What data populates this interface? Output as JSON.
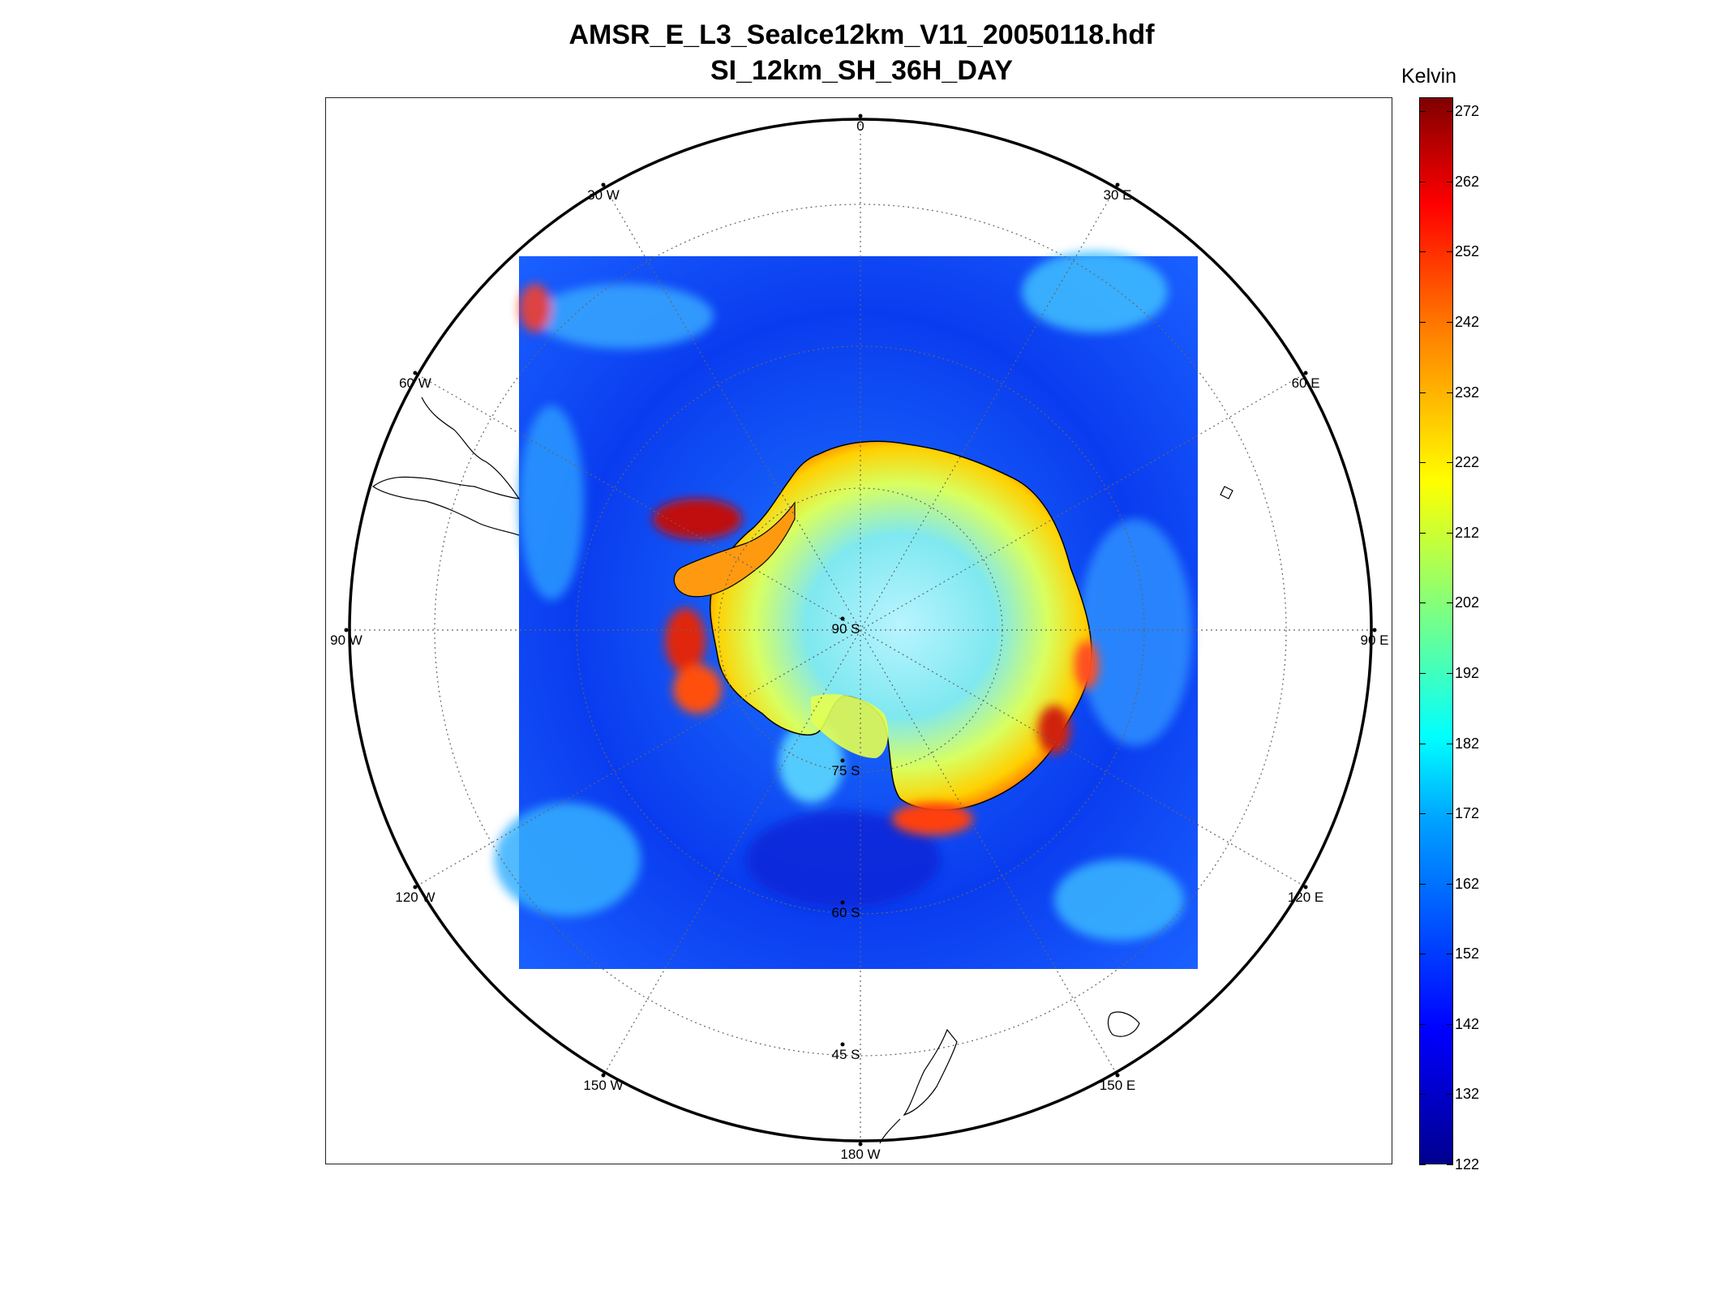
{
  "title": {
    "line1": "AMSR_E_L3_SeaIce12km_V11_20050118.hdf",
    "line2": "SI_12km_SH_36H_DAY"
  },
  "colorbar": {
    "unit": "Kelvin",
    "ticks": [
      "272",
      "262",
      "252",
      "242",
      "232",
      "222",
      "212",
      "202",
      "192",
      "182",
      "172",
      "162",
      "152",
      "142",
      "132",
      "122"
    ],
    "min": 122,
    "max": 274,
    "colormap": [
      "#00008f",
      "#0000ff",
      "#00a0ff",
      "#00ffff",
      "#7fff7f",
      "#ffff00",
      "#ff8000",
      "#ff0000",
      "#800000"
    ]
  },
  "map": {
    "projection": "south-polar-stereographic",
    "meridian_labels": [
      {
        "lon": 0,
        "text": "0"
      },
      {
        "lon": 30,
        "text": "30 E"
      },
      {
        "lon": 60,
        "text": "60 E"
      },
      {
        "lon": 90,
        "text": "90 E"
      },
      {
        "lon": 120,
        "text": "120 E"
      },
      {
        "lon": 150,
        "text": "150 E"
      },
      {
        "lon": 180,
        "text": "180 W"
      },
      {
        "lon": -150,
        "text": "150 W"
      },
      {
        "lon": -120,
        "text": "120 W"
      },
      {
        "lon": -90,
        "text": "90 W"
      },
      {
        "lon": -60,
        "text": "60 W"
      },
      {
        "lon": -30,
        "text": "30 W"
      }
    ],
    "parallel_labels": [
      {
        "lat": -90,
        "text": "90 S"
      },
      {
        "lat": -75,
        "text": "75 S"
      },
      {
        "lat": -60,
        "text": "60 S"
      },
      {
        "lat": -45,
        "text": "45 S"
      }
    ],
    "colors": {
      "ocean": "#1a5cff",
      "land_outline": "#000000",
      "grid": "#555555"
    }
  }
}
